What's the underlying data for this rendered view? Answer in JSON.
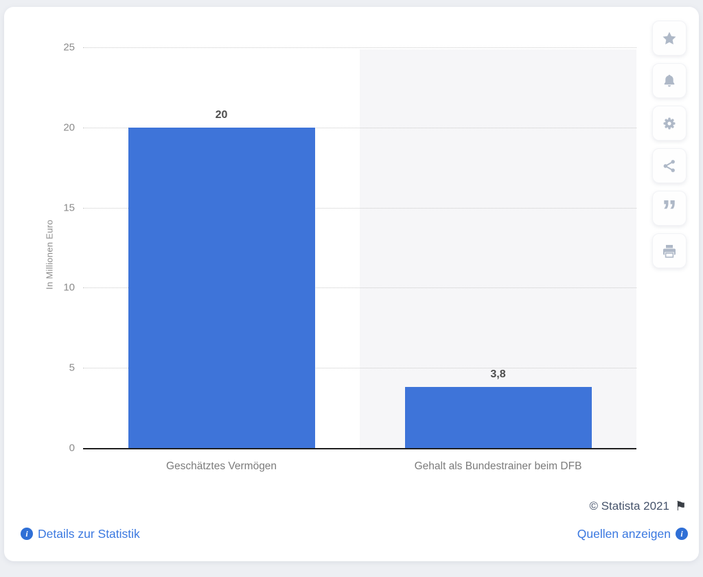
{
  "chart_data": {
    "type": "bar",
    "categories": [
      "Geschätztes Vermögen",
      "Gehalt als Bundestrainer beim DFB"
    ],
    "values": [
      20,
      3.8
    ],
    "value_labels": [
      "20",
      "3,8"
    ],
    "title": "",
    "xlabel": "",
    "ylabel": "In Millionen Euro",
    "ylim": [
      0,
      25
    ],
    "yticks": [
      "0",
      "5",
      "10",
      "15",
      "20",
      "25"
    ],
    "grid": "horizontal dotted",
    "legend": "none",
    "bar_color": "#3e74d9",
    "highlight_band_color": "#f6f6f8",
    "highlighted_category_index": 1
  },
  "toolbar": {
    "icon_color": "#aeb8c7",
    "buttons": [
      {
        "label": "favorite",
        "icon": "star-icon"
      },
      {
        "label": "notifications",
        "icon": "bell-icon"
      },
      {
        "label": "settings",
        "icon": "gear-icon"
      },
      {
        "label": "share",
        "icon": "share-icon"
      },
      {
        "label": "cite",
        "icon": "quote-icon"
      },
      {
        "label": "print",
        "icon": "printer-icon"
      }
    ]
  },
  "footer": {
    "copyright": "© Statista 2021",
    "flag_icon": "flag-icon",
    "details_link": "Details zur Statistik",
    "sources_link": "Quellen anzeigen",
    "link_color": "#3a78e0"
  },
  "colors": {
    "page_bg": "#edeff3",
    "card_bg": "#ffffff",
    "axis_line": "#1f1f1f",
    "gridline": "#c9c9c9",
    "tick_label": "#8b8b8b",
    "value_label": "#4d4d4d",
    "category_label": "#7b7b7b"
  }
}
